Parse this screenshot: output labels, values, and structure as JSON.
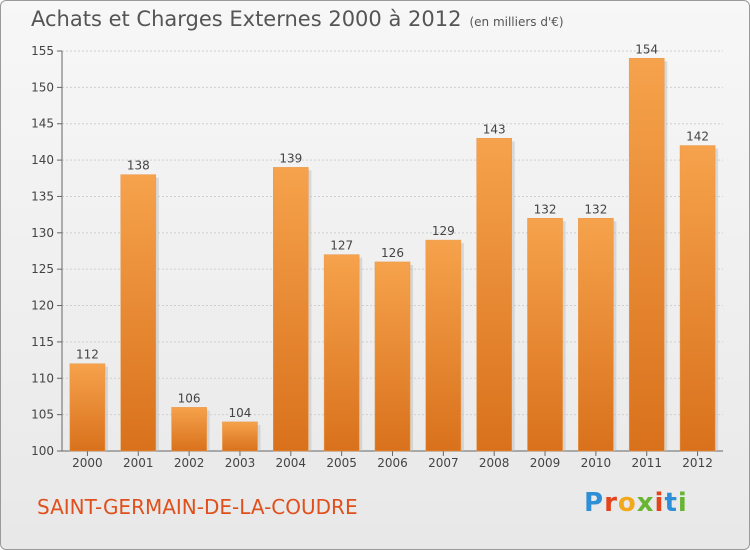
{
  "header": {
    "title": "Achats et Charges Externes 2000 à 2012",
    "unit": "(en milliers d'€)"
  },
  "footer": {
    "commune": "SAINT-GERMAIN-DE-LA-COUDRE",
    "logo": [
      "P",
      "r",
      "o",
      "x",
      "i",
      "t",
      "i"
    ]
  },
  "chart_data": {
    "type": "bar",
    "title": "Achats et Charges Externes 2000 à 2012",
    "subtitle": "(en milliers d'€)",
    "xlabel": "",
    "ylabel": "",
    "categories": [
      "2000",
      "2001",
      "2002",
      "2003",
      "2004",
      "2005",
      "2006",
      "2007",
      "2008",
      "2009",
      "2010",
      "2011",
      "2012"
    ],
    "values": [
      112,
      138,
      106,
      104,
      139,
      127,
      126,
      129,
      143,
      132,
      132,
      154,
      142
    ],
    "ylim": [
      100,
      155
    ],
    "yticks": [
      100,
      105,
      110,
      115,
      120,
      125,
      130,
      135,
      140,
      145,
      150,
      155
    ],
    "grid": true,
    "bar_color": "#f0902e"
  }
}
